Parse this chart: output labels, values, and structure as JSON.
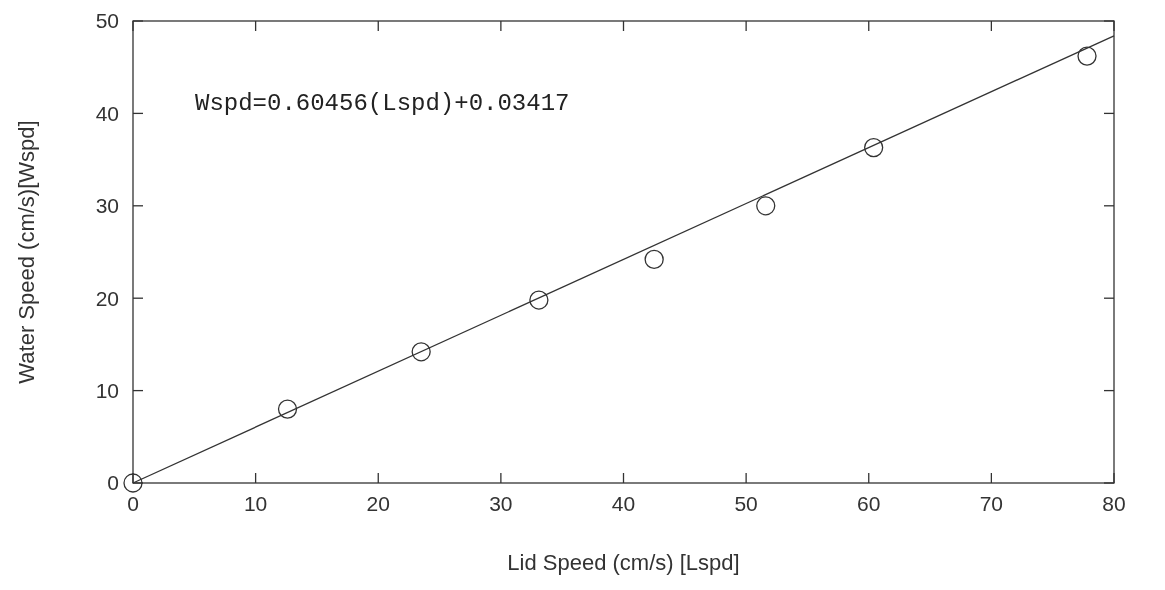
{
  "chart_data": {
    "type": "scatter",
    "xlabel": "Lid Speed (cm/s) [Lspd]",
    "ylabel": "Water Speed (cm/s)[Wspd]",
    "annotations": [
      "Wspd=0.60456(Lspd)+0.03417"
    ],
    "xlim": [
      0,
      80
    ],
    "ylim": [
      0,
      50
    ],
    "xticks": [
      0,
      10,
      20,
      30,
      40,
      50,
      60,
      70,
      80
    ],
    "yticks": [
      0,
      10,
      20,
      30,
      40,
      50
    ],
    "grid": false,
    "series": [
      {
        "color": "#333333",
        "marker": "circle",
        "x": [
          0,
          12.6,
          23.5,
          33.1,
          42.5,
          51.6,
          60.4,
          77.8
        ],
        "values": [
          0,
          8.0,
          14.2,
          19.8,
          24.2,
          30.0,
          36.3,
          46.2
        ]
      },
      {
        "type": "line",
        "color": "#333333",
        "line_style": "solid",
        "marker": "none",
        "x": [
          0,
          80
        ],
        "values": [
          0,
          48.4
        ]
      }
    ]
  }
}
